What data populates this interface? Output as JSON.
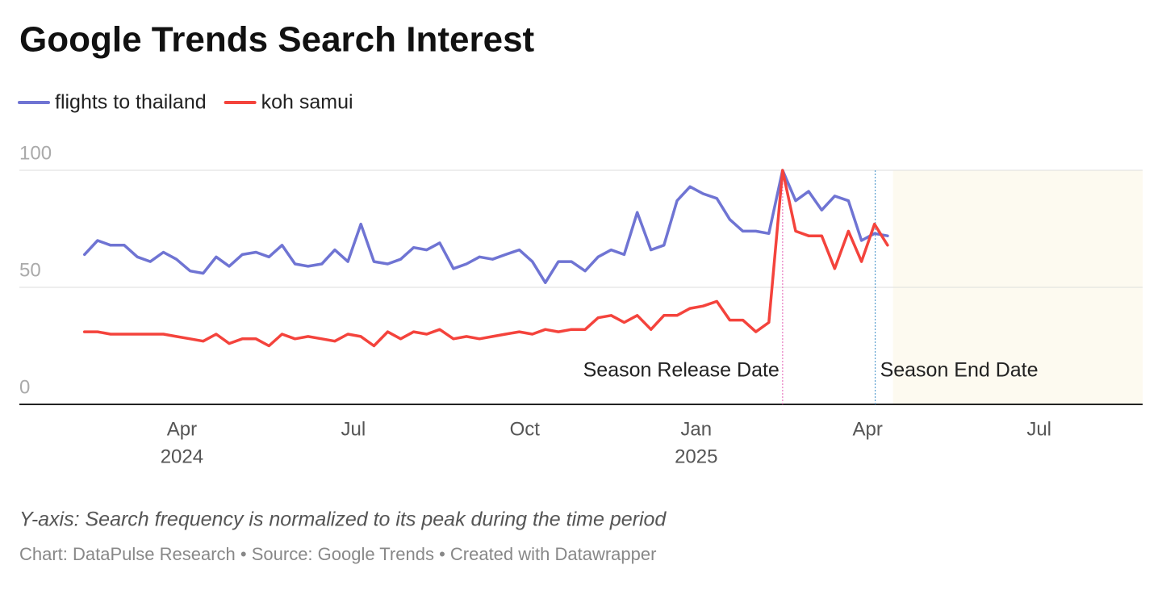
{
  "chart_data": {
    "type": "line",
    "title": "Google Trends Search Interest",
    "note": "Y-axis: Search frequency is normalized to its peak during the time period",
    "source": "Chart: DataPulse Research • Source: Google Trends • Created with Datawrapper",
    "x": [
      2024.108,
      2024.127,
      2024.146,
      2024.166,
      2024.185,
      2024.204,
      2024.223,
      2024.242,
      2024.262,
      2024.281,
      2024.3,
      2024.319,
      2024.338,
      2024.358,
      2024.377,
      2024.396,
      2024.415,
      2024.434,
      2024.454,
      2024.473,
      2024.492,
      2024.511,
      2024.53,
      2024.55,
      2024.569,
      2024.588,
      2024.607,
      2024.626,
      2024.646,
      2024.665,
      2024.684,
      2024.703,
      2024.722,
      2024.742,
      2024.761,
      2024.78,
      2024.799,
      2024.818,
      2024.838,
      2024.857,
      2024.876,
      2024.895,
      2024.914,
      2024.934,
      2024.953,
      2024.972,
      2024.991,
      2025.01,
      2025.03,
      2025.049,
      2025.068,
      2025.087,
      2025.106,
      2025.126,
      2025.145,
      2025.164,
      2025.183,
      2025.202,
      2025.222,
      2025.241,
      2025.26,
      2025.279
    ],
    "series": [
      {
        "name": "flights to thailand",
        "color": "#6f74d3",
        "values": [
          64,
          70,
          68,
          68,
          63,
          61,
          65,
          62,
          57,
          56,
          63,
          59,
          64,
          65,
          63,
          68,
          60,
          59,
          60,
          66,
          61,
          77,
          61,
          60,
          62,
          67,
          66,
          69,
          58,
          60,
          63,
          62,
          64,
          66,
          61,
          52,
          61,
          61,
          57,
          63,
          66,
          64,
          82,
          66,
          68,
          87,
          93,
          90,
          88,
          79,
          74,
          74,
          73,
          100,
          87,
          91,
          83,
          89,
          87,
          70,
          73,
          72
        ]
      },
      {
        "name": "koh samui",
        "color": "#f4433c",
        "values": [
          31,
          31,
          30,
          30,
          30,
          30,
          30,
          29,
          28,
          27,
          30,
          26,
          28,
          28,
          25,
          30,
          28,
          29,
          28,
          27,
          30,
          29,
          25,
          31,
          28,
          31,
          30,
          32,
          28,
          29,
          28,
          29,
          30,
          31,
          30,
          32,
          31,
          32,
          32,
          37,
          38,
          35,
          38,
          32,
          38,
          38,
          41,
          42,
          44,
          36,
          36,
          31,
          35,
          100,
          74,
          72,
          72,
          58,
          74,
          61,
          77,
          68
        ]
      }
    ],
    "xlim": [
      2024.013,
      2025.651
    ],
    "xticks": [
      {
        "value": 2024.25,
        "label": "Apr"
      },
      {
        "value": 2024.5,
        "label": "Jul"
      },
      {
        "value": 2024.75,
        "label": "Oct"
      },
      {
        "value": 2025.0,
        "label": "Jan"
      },
      {
        "value": 2025.25,
        "label": "Apr"
      },
      {
        "value": 2025.5,
        "label": "Jul"
      }
    ],
    "xtick_years": [
      {
        "value": 2024.25,
        "label": "2024"
      },
      {
        "value": 2025.0,
        "label": "2025"
      }
    ],
    "ylim": [
      0,
      100
    ],
    "yticks": [
      0,
      50,
      100
    ],
    "grid": true,
    "shaded_range": [
      2025.287,
      2025.651
    ],
    "annotations": [
      {
        "label": "Season Release Date",
        "x": 2025.126,
        "color": "#e879c0",
        "side": "left"
      },
      {
        "label": "Season End Date",
        "x": 2025.261,
        "color": "#5a9fcf",
        "side": "right"
      }
    ]
  }
}
